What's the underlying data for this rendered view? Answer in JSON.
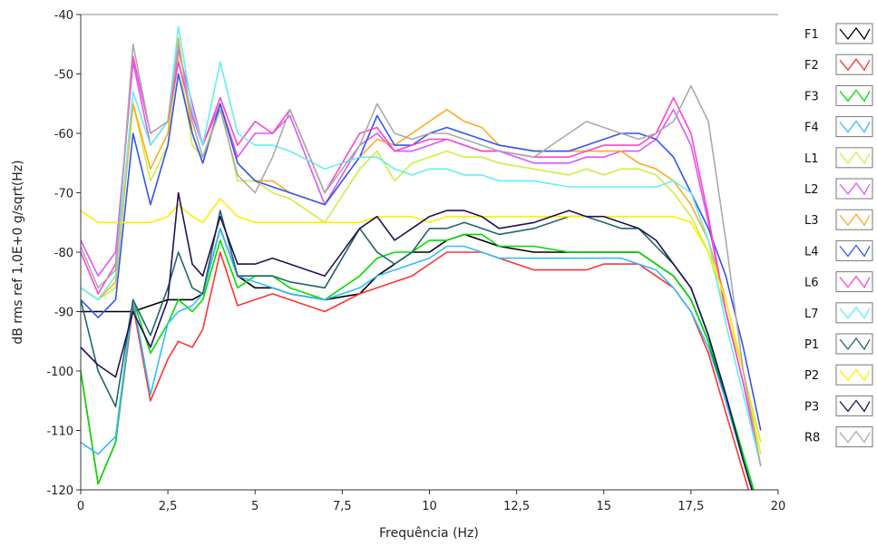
{
  "chart_data": {
    "type": "line",
    "title": "",
    "xlabel": "Frequência (Hz)",
    "ylabel": "dB rms ref 1,0E+0 g/sqrt(Hz)",
    "xlim": [
      0,
      20
    ],
    "ylim": [
      -120,
      -40
    ],
    "x_ticks": [
      0,
      2.5,
      5,
      7.5,
      10,
      12.5,
      15,
      17.5,
      20
    ],
    "x_tick_labels": [
      "0",
      "2,5",
      "5",
      "7,5",
      "10",
      "12,5",
      "15",
      "17,5",
      "20"
    ],
    "y_ticks": [
      -40,
      -50,
      -60,
      -70,
      -80,
      -90,
      -100,
      -110,
      -120
    ],
    "y_tick_labels": [
      "-40",
      "-50",
      "-60",
      "-70",
      "-80",
      "-90",
      "-100",
      "-110",
      "-120"
    ],
    "grid": false,
    "legend_position": "right",
    "x": [
      0,
      0.5,
      1,
      1.5,
      2,
      2.5,
      2.8,
      3.2,
      3.5,
      4,
      4.5,
      5,
      5.5,
      6,
      7,
      8,
      8.5,
      9,
      9.5,
      10,
      10.5,
      11,
      11.5,
      12,
      13,
      14,
      14.5,
      15,
      15.5,
      16,
      16.5,
      17,
      17.5,
      18,
      18.5,
      19,
      19.5
    ],
    "series": [
      {
        "name": "F1",
        "color": "#000000",
        "values": [
          -90,
          -90,
          -90,
          -90,
          -89,
          -88,
          -88,
          -88,
          -87,
          -76,
          -84,
          -86,
          -86,
          -87,
          -88,
          -87,
          -84,
          -82,
          -80,
          -80,
          -78,
          -77,
          -78,
          -79,
          -80,
          -80,
          -80,
          -80,
          -80,
          -80,
          -82,
          -84,
          -88,
          -95,
          -105,
          -115,
          -125
        ]
      },
      {
        "name": "F2",
        "color": "#ff3333",
        "values": [
          -100,
          -119,
          -112,
          -89,
          -105,
          -98,
          -95,
          -96,
          -93,
          -80,
          -89,
          -88,
          -87,
          -88,
          -90,
          -87,
          -86,
          -85,
          -84,
          -82,
          -80,
          -80,
          -80,
          -81,
          -83,
          -83,
          -83,
          -82,
          -82,
          -82,
          -84,
          -86,
          -90,
          -97,
          -107,
          -117,
          -127
        ]
      },
      {
        "name": "F3",
        "color": "#00dd00",
        "values": [
          -100,
          -119,
          -112,
          -88,
          -97,
          -92,
          -88,
          -90,
          -88,
          -78,
          -86,
          -84,
          -84,
          -86,
          -88,
          -84,
          -81,
          -80,
          -80,
          -78,
          -78,
          -77,
          -77,
          -79,
          -79,
          -80,
          -80,
          -80,
          -80,
          -80,
          -82,
          -84,
          -88,
          -95,
          -104,
          -114,
          -124
        ]
      },
      {
        "name": "F4",
        "color": "#33bbff",
        "values": [
          -112,
          -114,
          -111,
          -88,
          -104,
          -92,
          -90,
          -89,
          -87,
          -76,
          -84,
          -85,
          -86,
          -87,
          -88,
          -86,
          -84,
          -83,
          -82,
          -81,
          -79,
          -79,
          -80,
          -81,
          -81,
          -81,
          -81,
          -81,
          -81,
          -82,
          -83,
          -86,
          -90,
          -96,
          -105,
          -115,
          -125
        ]
      },
      {
        "name": "L1",
        "color": "#ccee44",
        "values": [
          -86,
          -88,
          -86,
          -55,
          -68,
          -62,
          -47,
          -62,
          -64,
          -55,
          -68,
          -68,
          -70,
          -71,
          -75,
          -66,
          -63,
          -68,
          -65,
          -64,
          -63,
          -64,
          -64,
          -65,
          -66,
          -67,
          -66,
          -67,
          -66,
          -66,
          -67,
          -70,
          -74,
          -80,
          -90,
          -100,
          -112
        ]
      },
      {
        "name": "L2",
        "color": "#dd55ff",
        "values": [
          -78,
          -84,
          -80,
          -48,
          -62,
          -58,
          -46,
          -55,
          -62,
          -55,
          -64,
          -60,
          -60,
          -57,
          -72,
          -62,
          -60,
          -63,
          -63,
          -62,
          -61,
          -62,
          -63,
          -63,
          -65,
          -65,
          -64,
          -64,
          -63,
          -63,
          -61,
          -56,
          -62,
          -75,
          -90,
          -102,
          -116
        ]
      },
      {
        "name": "L3",
        "color": "#ffaa22",
        "values": [
          -86,
          -88,
          -85,
          -55,
          -66,
          -60,
          -44,
          -60,
          -65,
          -55,
          -65,
          -68,
          -68,
          -70,
          -72,
          -64,
          -61,
          -62,
          -60,
          -58,
          -56,
          -58,
          -59,
          -62,
          -63,
          -63,
          -63,
          -63,
          -63,
          -65,
          -66,
          -68,
          -72,
          -78,
          -88,
          -100,
          -114
        ]
      },
      {
        "name": "L4",
        "color": "#3355ee",
        "values": [
          -88,
          -91,
          -88,
          -60,
          -72,
          -62,
          -50,
          -60,
          -65,
          -55,
          -65,
          -68,
          -69,
          -70,
          -72,
          -64,
          -57,
          -62,
          -62,
          -60,
          -59,
          -60,
          -61,
          -62,
          -63,
          -63,
          -62,
          -61,
          -60,
          -60,
          -61,
          -64,
          -70,
          -76,
          -84,
          -96,
          -110
        ]
      },
      {
        "name": "L6",
        "color": "#ff44cc",
        "values": [
          -80,
          -87,
          -82,
          -47,
          -60,
          -58,
          -48,
          -57,
          -62,
          -54,
          -62,
          -58,
          -60,
          -56,
          -70,
          -60,
          -59,
          -63,
          -62,
          -61,
          -61,
          -62,
          -63,
          -63,
          -64,
          -64,
          -63,
          -62,
          -62,
          -62,
          -60,
          -54,
          -60,
          -74,
          -90,
          -102,
          -116
        ]
      },
      {
        "name": "L7",
        "color": "#66eeee",
        "values": [
          -86,
          -88,
          -84,
          -53,
          -62,
          -58,
          -42,
          -56,
          -62,
          -48,
          -60,
          -62,
          -62,
          -63,
          -66,
          -64,
          -64,
          -66,
          -67,
          -66,
          -66,
          -67,
          -67,
          -68,
          -68,
          -69,
          -69,
          -69,
          -69,
          -69,
          -69,
          -68,
          -70,
          -78,
          -92,
          -104,
          -116
        ]
      },
      {
        "name": "P1",
        "color": "#226666",
        "values": [
          -88,
          -100,
          -106,
          -88,
          -94,
          -86,
          -80,
          -86,
          -87,
          -73,
          -84,
          -84,
          -84,
          -85,
          -86,
          -76,
          -80,
          -82,
          -80,
          -76,
          -76,
          -75,
          -76,
          -77,
          -76,
          -74,
          -74,
          -75,
          -76,
          -76,
          -79,
          -82,
          -86,
          -94,
          -104,
          -115,
          -125
        ]
      },
      {
        "name": "P2",
        "color": "#ffee00",
        "values": [
          -73,
          -75,
          -75,
          -75,
          -75,
          -74,
          -72,
          -74,
          -75,
          -71,
          -74,
          -75,
          -75,
          -75,
          -75,
          -75,
          -74,
          -74,
          -74,
          -75,
          -74,
          -74,
          -74,
          -74,
          -74,
          -74,
          -74,
          -74,
          -74,
          -74,
          -74,
          -74,
          -75,
          -80,
          -88,
          -100,
          -114
        ]
      },
      {
        "name": "P3",
        "color": "#221155",
        "values": [
          -96,
          -99,
          -101,
          -90,
          -96,
          -88,
          -70,
          -82,
          -84,
          -74,
          -82,
          -82,
          -81,
          -82,
          -84,
          -76,
          -74,
          -78,
          -76,
          -74,
          -73,
          -73,
          -74,
          -76,
          -75,
          -73,
          -74,
          -74,
          -75,
          -76,
          -78,
          -82,
          -86,
          -94,
          -104,
          -115,
          -125
        ]
      },
      {
        "name": "R8",
        "color": "#aaaaaa",
        "values": [
          -79,
          -86,
          -83,
          -45,
          -60,
          -58,
          -45,
          -58,
          -64,
          -56,
          -67,
          -70,
          -64,
          -56,
          -70,
          -62,
          -55,
          -60,
          -61,
          -60,
          -60,
          -61,
          -62,
          -63,
          -64,
          -60,
          -58,
          -59,
          -60,
          -61,
          -60,
          -58,
          -52,
          -58,
          -78,
          -100,
          -116
        ]
      }
    ]
  }
}
